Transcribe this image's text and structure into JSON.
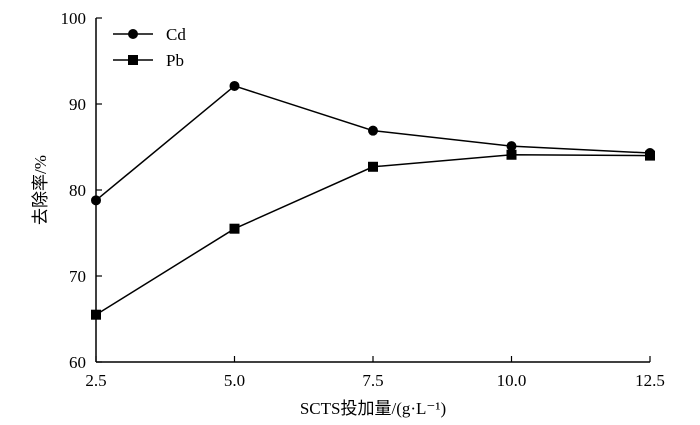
{
  "chart_data": {
    "type": "line",
    "xlabel": "SCTS投加量/(g·L⁻¹)",
    "ylabel": "去除率/%",
    "x": [
      2.5,
      5.0,
      7.5,
      10.0,
      12.5
    ],
    "x_tick_labels": [
      "2.5",
      "5.0",
      "7.5",
      "10.0",
      "12.5"
    ],
    "y_tick_labels": [
      "60",
      "70",
      "80",
      "90",
      "100"
    ],
    "xlim": [
      2.5,
      12.5
    ],
    "ylim": [
      60,
      100
    ],
    "grid": false,
    "legend_position": "top-left",
    "series": [
      {
        "name": "Cd",
        "marker": "circle",
        "color": "#000000",
        "values": [
          78.8,
          92.1,
          86.9,
          85.1,
          84.3
        ]
      },
      {
        "name": "Pb",
        "marker": "square",
        "color": "#000000",
        "values": [
          65.5,
          75.5,
          82.7,
          84.1,
          84.0
        ]
      }
    ]
  }
}
